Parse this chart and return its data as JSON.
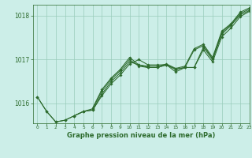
{
  "title": "Graphe pression niveau de la mer (hPa)",
  "bg_color": "#cceee8",
  "grid_color": "#99ccbb",
  "line_color": "#2d6b2d",
  "xlim": [
    -0.5,
    23
  ],
  "ylim": [
    1015.55,
    1018.25
  ],
  "yticks": [
    1016,
    1017,
    1018
  ],
  "xticks": [
    0,
    1,
    2,
    3,
    4,
    5,
    6,
    7,
    8,
    9,
    10,
    11,
    12,
    13,
    14,
    15,
    16,
    17,
    18,
    19,
    20,
    21,
    22,
    23
  ],
  "series1": [
    [
      0,
      1016.15
    ],
    [
      1,
      1015.82
    ],
    [
      2,
      1015.58
    ],
    [
      3,
      1015.62
    ],
    [
      4,
      1015.72
    ],
    [
      5,
      1015.82
    ],
    [
      6,
      1015.85
    ],
    [
      7,
      1016.18
    ],
    [
      8,
      1016.45
    ],
    [
      9,
      1016.65
    ],
    [
      10,
      1016.9
    ],
    [
      11,
      1017.0
    ],
    [
      12,
      1016.88
    ],
    [
      13,
      1016.88
    ],
    [
      14,
      1016.88
    ],
    [
      15,
      1016.72
    ],
    [
      16,
      1016.82
    ],
    [
      17,
      1016.82
    ],
    [
      18,
      1017.22
    ],
    [
      19,
      1016.95
    ],
    [
      20,
      1017.52
    ],
    [
      21,
      1017.72
    ],
    [
      22,
      1017.98
    ],
    [
      23,
      1018.1
    ]
  ],
  "series2": [
    [
      0,
      1016.15
    ],
    [
      1,
      1015.82
    ],
    [
      2,
      1015.58
    ],
    [
      3,
      1015.62
    ],
    [
      4,
      1015.72
    ],
    [
      5,
      1015.82
    ],
    [
      6,
      1015.85
    ],
    [
      7,
      1016.22
    ],
    [
      8,
      1016.5
    ],
    [
      9,
      1016.7
    ],
    [
      10,
      1016.95
    ],
    [
      11,
      1016.88
    ],
    [
      12,
      1016.82
    ],
    [
      13,
      1016.82
    ],
    [
      14,
      1016.88
    ],
    [
      15,
      1016.78
    ],
    [
      16,
      1016.82
    ],
    [
      17,
      1016.82
    ],
    [
      18,
      1017.28
    ],
    [
      19,
      1017.0
    ],
    [
      20,
      1017.58
    ],
    [
      21,
      1017.78
    ],
    [
      22,
      1018.02
    ],
    [
      23,
      1018.12
    ]
  ],
  "series3": [
    [
      4,
      1015.72
    ],
    [
      5,
      1015.82
    ],
    [
      6,
      1015.88
    ],
    [
      7,
      1016.28
    ],
    [
      8,
      1016.55
    ],
    [
      9,
      1016.75
    ],
    [
      10,
      1017.0
    ],
    [
      11,
      1016.85
    ],
    [
      12,
      1016.82
    ],
    [
      13,
      1016.82
    ],
    [
      14,
      1016.88
    ],
    [
      15,
      1016.78
    ],
    [
      16,
      1016.82
    ],
    [
      17,
      1017.22
    ],
    [
      18,
      1017.32
    ],
    [
      19,
      1017.02
    ],
    [
      20,
      1017.62
    ],
    [
      21,
      1017.8
    ],
    [
      22,
      1018.05
    ],
    [
      23,
      1018.15
    ]
  ],
  "series4": [
    [
      6,
      1015.9
    ],
    [
      7,
      1016.32
    ],
    [
      8,
      1016.58
    ],
    [
      9,
      1016.78
    ],
    [
      10,
      1017.05
    ],
    [
      11,
      1016.88
    ],
    [
      12,
      1016.85
    ],
    [
      13,
      1016.85
    ],
    [
      14,
      1016.9
    ],
    [
      15,
      1016.8
    ],
    [
      16,
      1016.85
    ],
    [
      17,
      1017.25
    ],
    [
      18,
      1017.35
    ],
    [
      19,
      1017.05
    ],
    [
      20,
      1017.65
    ],
    [
      21,
      1017.82
    ],
    [
      22,
      1018.08
    ],
    [
      23,
      1018.18
    ]
  ]
}
